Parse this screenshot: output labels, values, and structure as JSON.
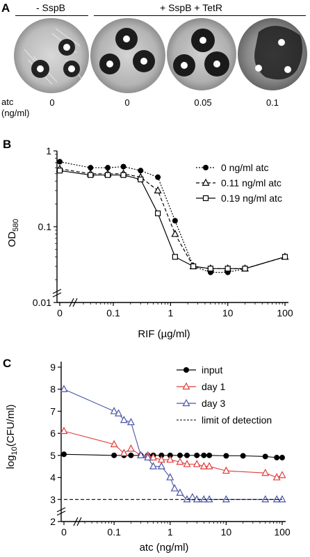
{
  "panel_a": {
    "letter": "A",
    "header_minus": "- SspB",
    "header_plus": "+ SspB + TetR",
    "atc_label_line1": "atc",
    "atc_label_line2": "(ng/ml)",
    "plate_atc_values": [
      "0",
      "0",
      "0.05",
      "0.1"
    ]
  },
  "chart_data": [
    {
      "panel": "B",
      "type": "scatter",
      "ylabel": "OD580",
      "xlabel": "RIF (µg/ml)",
      "y_scale": "log",
      "x_scale": "log (with 0 on broken axis)",
      "ylim": [
        0.01,
        1
      ],
      "xlim": [
        0,
        100
      ],
      "x_tick_labels": [
        "0",
        "0.1",
        "1",
        "10",
        "100"
      ],
      "y_tick_labels": [
        "0.01",
        "0.1",
        "1"
      ],
      "legend_position": "top-right",
      "series": [
        {
          "name": "0 ng/ml atc",
          "marker": "filled-circle",
          "line": "dotted",
          "x": [
            0,
            0.04,
            0.08,
            0.15,
            0.3,
            0.6,
            1.2,
            2.5,
            5,
            10,
            20,
            100
          ],
          "y": [
            0.72,
            0.6,
            0.6,
            0.62,
            0.55,
            0.45,
            0.12,
            0.03,
            0.025,
            0.025,
            0.028,
            0.04
          ]
        },
        {
          "name": "0.11 ng/ml atc",
          "marker": "open-triangle",
          "line": "dashed",
          "x": [
            0,
            0.04,
            0.08,
            0.15,
            0.3,
            0.6,
            1.2,
            2.5,
            5,
            10,
            20,
            100
          ],
          "y": [
            0.58,
            0.5,
            0.5,
            0.5,
            0.45,
            0.3,
            0.08,
            0.03,
            0.028,
            0.028,
            0.028,
            0.04
          ]
        },
        {
          "name": "0.19 ng/ml atc",
          "marker": "open-square",
          "line": "solid",
          "x": [
            0,
            0.04,
            0.08,
            0.15,
            0.3,
            0.6,
            1.2,
            2.5,
            5,
            10,
            20,
            100
          ],
          "y": [
            0.55,
            0.48,
            0.48,
            0.48,
            0.42,
            0.15,
            0.04,
            0.03,
            0.028,
            0.028,
            0.028,
            0.04
          ]
        }
      ]
    },
    {
      "panel": "C",
      "type": "scatter",
      "ylabel": "log10(CFU/ml)",
      "xlabel": "atc (ng/ml)",
      "x_scale": "log (with 0 on broken axis)",
      "ylim": [
        2,
        9
      ],
      "xlim": [
        0,
        100
      ],
      "x_tick_labels": [
        "0",
        "0.1",
        "1",
        "10",
        "100"
      ],
      "y_tick_labels": [
        "2",
        "3",
        "4",
        "5",
        "6",
        "7",
        "8",
        "9"
      ],
      "legend_position": "top-right",
      "series": [
        {
          "name": "input",
          "marker": "filled-circle",
          "color": "#000000",
          "x": [
            0,
            0.1,
            0.15,
            0.2,
            0.3,
            0.4,
            0.5,
            0.7,
            1,
            1.5,
            2,
            3,
            4,
            5,
            10,
            20,
            50,
            80,
            100
          ],
          "y": [
            5.05,
            5.0,
            5.0,
            5.0,
            5.0,
            5.0,
            5.0,
            5.0,
            5.0,
            5.0,
            5.0,
            5.0,
            5.0,
            5.0,
            4.98,
            4.98,
            4.95,
            4.9,
            4.9
          ]
        },
        {
          "name": "day 1",
          "marker": "open-triangle",
          "color": "#e03a3a",
          "x": [
            0,
            0.1,
            0.15,
            0.2,
            0.3,
            0.4,
            0.5,
            0.7,
            1,
            1.5,
            2,
            3,
            4,
            5,
            10,
            50,
            80,
            100
          ],
          "y": [
            6.1,
            5.5,
            5.1,
            5.3,
            5.0,
            5.0,
            4.9,
            4.8,
            4.8,
            4.7,
            4.6,
            4.6,
            4.5,
            4.5,
            4.3,
            4.2,
            4.0,
            4.1
          ]
        },
        {
          "name": "day 3",
          "marker": "open-triangle",
          "color": "#4a55a8",
          "x": [
            0,
            0.1,
            0.12,
            0.15,
            0.2,
            0.3,
            0.4,
            0.5,
            0.7,
            1,
            1.2,
            1.5,
            2,
            2.5,
            3,
            4,
            5,
            10,
            50,
            80,
            100
          ],
          "y": [
            8.0,
            7.0,
            6.9,
            6.6,
            6.5,
            5.0,
            4.9,
            4.5,
            4.5,
            4.0,
            3.5,
            3.3,
            3.0,
            3.1,
            3.0,
            3.0,
            3.0,
            3.0,
            3.0,
            3.0,
            3.0
          ]
        },
        {
          "name": "limit of detection",
          "line": "dashed",
          "color": "#000000",
          "x": [
            0,
            100
          ],
          "y": [
            3,
            3
          ]
        }
      ]
    }
  ]
}
